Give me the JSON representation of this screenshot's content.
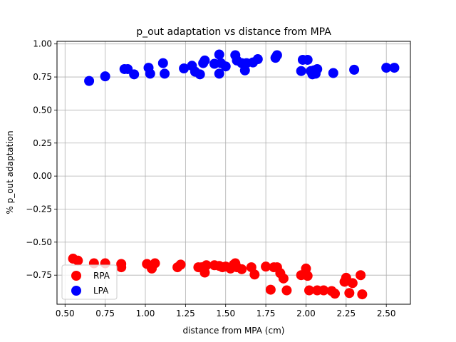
{
  "chart_data": {
    "type": "scatter",
    "title": "p_out adaptation vs distance from MPA",
    "xlabel": "distance from MPA (cm)",
    "ylabel": "% p_out adaptation",
    "xlim": [
      0.45,
      2.65
    ],
    "ylim": [
      -0.97,
      1.02
    ],
    "xticks": [
      0.5,
      0.75,
      1.0,
      1.25,
      1.5,
      1.75,
      2.0,
      2.25,
      2.5
    ],
    "xtick_labels": [
      "0.50",
      "0.75",
      "1.00",
      "1.25",
      "1.50",
      "1.75",
      "2.00",
      "2.25",
      "2.50"
    ],
    "yticks": [
      -0.75,
      -0.5,
      -0.25,
      0.0,
      0.25,
      0.5,
      0.75,
      1.0
    ],
    "ytick_labels": [
      "−0.75",
      "−0.50",
      "−0.25",
      "0.00",
      "0.25",
      "0.50",
      "0.75",
      "1.00"
    ],
    "grid": true,
    "legend_position": "lower-left",
    "series": [
      {
        "name": "RPA",
        "color": "#ff0000",
        "points": [
          [
            0.55,
            -0.625
          ],
          [
            0.58,
            -0.64
          ],
          [
            0.68,
            -0.66
          ],
          [
            0.75,
            -0.66
          ],
          [
            0.85,
            -0.665
          ],
          [
            0.85,
            -0.69
          ],
          [
            1.01,
            -0.665
          ],
          [
            1.04,
            -0.7
          ],
          [
            1.06,
            -0.66
          ],
          [
            1.2,
            -0.69
          ],
          [
            1.22,
            -0.67
          ],
          [
            1.33,
            -0.69
          ],
          [
            1.35,
            -0.69
          ],
          [
            1.37,
            -0.73
          ],
          [
            1.38,
            -0.675
          ],
          [
            1.43,
            -0.675
          ],
          [
            1.46,
            -0.68
          ],
          [
            1.48,
            -0.69
          ],
          [
            1.5,
            -0.685
          ],
          [
            1.53,
            -0.7
          ],
          [
            1.55,
            -0.67
          ],
          [
            1.56,
            -0.66
          ],
          [
            1.57,
            -0.69
          ],
          [
            1.6,
            -0.705
          ],
          [
            1.66,
            -0.69
          ],
          [
            1.68,
            -0.745
          ],
          [
            1.75,
            -0.685
          ],
          [
            1.78,
            -0.86
          ],
          [
            1.8,
            -0.69
          ],
          [
            1.82,
            -0.69
          ],
          [
            1.84,
            -0.735
          ],
          [
            1.86,
            -0.775
          ],
          [
            1.88,
            -0.865
          ],
          [
            1.97,
            -0.75
          ],
          [
            1.99,
            -0.745
          ],
          [
            2.0,
            -0.7
          ],
          [
            2.01,
            -0.755
          ],
          [
            2.02,
            -0.865
          ],
          [
            2.07,
            -0.865
          ],
          [
            2.11,
            -0.865
          ],
          [
            2.16,
            -0.87
          ],
          [
            2.18,
            -0.89
          ],
          [
            2.24,
            -0.8
          ],
          [
            2.25,
            -0.77
          ],
          [
            2.27,
            -0.885
          ],
          [
            2.29,
            -0.81
          ],
          [
            2.34,
            -0.75
          ],
          [
            2.35,
            -0.895
          ]
        ]
      },
      {
        "name": "LPA",
        "color": "#0000ff",
        "points": [
          [
            0.65,
            0.72
          ],
          [
            0.75,
            0.755
          ],
          [
            0.87,
            0.81
          ],
          [
            0.89,
            0.81
          ],
          [
            0.93,
            0.77
          ],
          [
            1.02,
            0.82
          ],
          [
            1.03,
            0.775
          ],
          [
            1.11,
            0.855
          ],
          [
            1.12,
            0.775
          ],
          [
            1.24,
            0.815
          ],
          [
            1.29,
            0.835
          ],
          [
            1.31,
            0.79
          ],
          [
            1.34,
            0.77
          ],
          [
            1.36,
            0.855
          ],
          [
            1.37,
            0.875
          ],
          [
            1.43,
            0.85
          ],
          [
            1.46,
            0.92
          ],
          [
            1.46,
            0.775
          ],
          [
            1.47,
            0.855
          ],
          [
            1.5,
            0.83
          ],
          [
            1.56,
            0.915
          ],
          [
            1.57,
            0.875
          ],
          [
            1.6,
            0.855
          ],
          [
            1.62,
            0.8
          ],
          [
            1.63,
            0.855
          ],
          [
            1.67,
            0.86
          ],
          [
            1.7,
            0.885
          ],
          [
            1.81,
            0.895
          ],
          [
            1.82,
            0.915
          ],
          [
            1.97,
            0.795
          ],
          [
            1.98,
            0.88
          ],
          [
            2.01,
            0.88
          ],
          [
            2.03,
            0.795
          ],
          [
            2.04,
            0.77
          ],
          [
            2.05,
            0.8
          ],
          [
            2.06,
            0.775
          ],
          [
            2.07,
            0.81
          ],
          [
            2.17,
            0.78
          ],
          [
            2.3,
            0.805
          ],
          [
            2.5,
            0.82
          ],
          [
            2.55,
            0.82
          ]
        ]
      }
    ]
  }
}
